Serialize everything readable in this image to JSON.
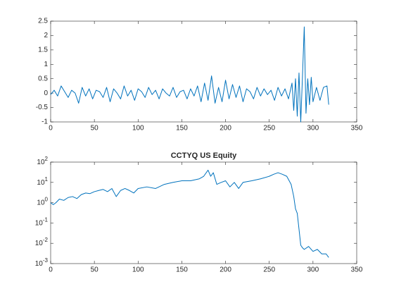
{
  "chart_data": [
    {
      "type": "line",
      "series": [
        {
          "color": "#0072bd",
          "x": [
            0,
            4,
            8,
            12,
            16,
            20,
            24,
            28,
            32,
            36,
            40,
            44,
            48,
            52,
            56,
            60,
            64,
            68,
            72,
            76,
            80,
            84,
            88,
            92,
            96,
            100,
            104,
            108,
            112,
            116,
            120,
            124,
            128,
            132,
            136,
            140,
            144,
            148,
            152,
            156,
            160,
            164,
            168,
            172,
            176,
            180,
            184,
            188,
            192,
            196,
            200,
            204,
            208,
            212,
            216,
            220,
            224,
            228,
            232,
            236,
            240,
            244,
            248,
            252,
            256,
            260,
            264,
            268,
            272,
            276,
            278,
            280,
            282,
            284,
            286,
            288,
            290,
            292,
            294,
            296,
            298,
            300,
            304,
            308,
            312,
            316,
            318
          ],
          "values": [
            -0.05,
            0.1,
            -0.1,
            0.25,
            0.05,
            -0.15,
            0.1,
            0,
            -0.35,
            0.2,
            -0.1,
            0.15,
            -0.2,
            0.1,
            0.05,
            -0.15,
            0.2,
            -0.3,
            0.15,
            0,
            -0.2,
            0.25,
            -0.1,
            0.1,
            -0.25,
            0.15,
            0.05,
            -0.15,
            0.2,
            -0.05,
            0.1,
            -0.2,
            0.15,
            0,
            -0.1,
            0.2,
            -0.15,
            0.05,
            0.1,
            -0.2,
            0.15,
            -0.1,
            0.25,
            -0.3,
            0.35,
            -0.25,
            0.6,
            -0.35,
            0.2,
            -0.3,
            0.45,
            -0.2,
            0.3,
            -0.15,
            0.25,
            -0.3,
            0.15,
            0.05,
            -0.2,
            0.2,
            -0.1,
            0.15,
            -0.05,
            0.1,
            -0.25,
            0.2,
            -0.1,
            0.15,
            -0.2,
            0.35,
            -0.6,
            0.5,
            -0.8,
            0.7,
            -1.0,
            0.6,
            2.3,
            -0.7,
            0.5,
            -0.4,
            0.55,
            -0.3,
            0.2,
            -0.25,
            0.2,
            0.25,
            -0.4
          ]
        }
      ],
      "xlim": [
        0,
        350
      ],
      "xticks": [
        0,
        50,
        100,
        150,
        200,
        250,
        300,
        350
      ],
      "ylim": [
        -1,
        2.5
      ],
      "yticks": [
        -1,
        -0.5,
        0,
        0.5,
        1,
        1.5,
        2,
        2.5
      ]
    },
    {
      "type": "line",
      "title": "CCTYQ US Equity",
      "ylog": true,
      "series": [
        {
          "color": "#0072bd",
          "x": [
            0,
            3,
            6,
            10,
            15,
            20,
            25,
            30,
            35,
            40,
            45,
            50,
            55,
            60,
            65,
            70,
            75,
            80,
            85,
            90,
            95,
            100,
            110,
            120,
            130,
            140,
            150,
            160,
            170,
            175,
            180,
            183,
            186,
            190,
            195,
            200,
            205,
            210,
            215,
            220,
            230,
            240,
            250,
            255,
            260,
            265,
            270,
            275,
            278,
            280,
            282,
            284,
            286,
            288,
            290,
            295,
            300,
            305,
            310,
            315,
            318
          ],
          "values": [
            1,
            0.8,
            1.0,
            1.5,
            1.3,
            1.8,
            2.0,
            1.6,
            2.5,
            3,
            2.8,
            3.5,
            4,
            4.5,
            3.5,
            5,
            2,
            4,
            5,
            4,
            3,
            5,
            6,
            5,
            8,
            10,
            12,
            12,
            15,
            20,
            40,
            20,
            30,
            8,
            10,
            12,
            6,
            10,
            5,
            10,
            12,
            15,
            20,
            25,
            30,
            25,
            20,
            8,
            2,
            0.5,
            0.3,
            0.05,
            0.008,
            0.006,
            0.005,
            0.007,
            0.004,
            0.005,
            0.003,
            0.003,
            0.002
          ]
        }
      ],
      "xlim": [
        0,
        350
      ],
      "xticks": [
        0,
        50,
        100,
        150,
        200,
        250,
        300,
        350
      ],
      "ylim": [
        0.001,
        100
      ],
      "yticks": [
        {
          "value": 0.001,
          "label": "10^-3"
        },
        {
          "value": 0.01,
          "label": "10^-2"
        },
        {
          "value": 0.1,
          "label": "10^-1"
        },
        {
          "value": 1,
          "label": "10^0"
        },
        {
          "value": 10,
          "label": "10^1"
        },
        {
          "value": 100,
          "label": "10^2"
        }
      ]
    }
  ]
}
